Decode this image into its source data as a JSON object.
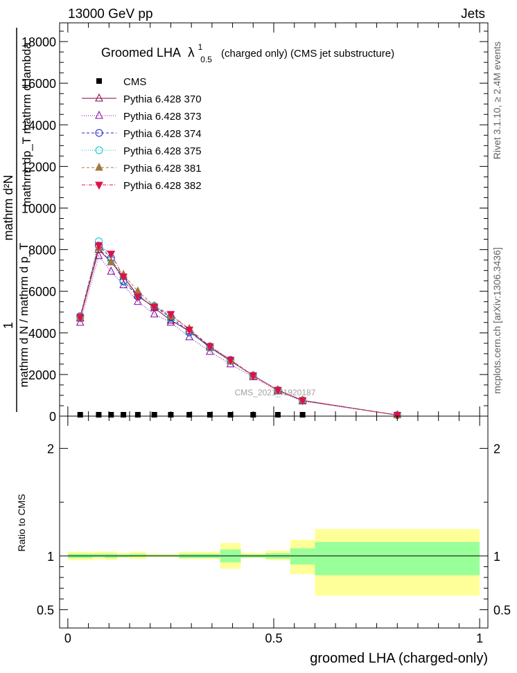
{
  "header": {
    "left": "13000 GeV pp",
    "right": "Jets"
  },
  "side_labels": {
    "rivet": "Rivet 3.1.10, ≥ 2.4M events",
    "mcplots": "mcplots.cern.ch [arXiv:1306.3436]"
  },
  "watermark": "CMS_2021_I1920187",
  "title": {
    "main": "Groomed LHA",
    "symbol": "λ",
    "sup": "1",
    "sub": "0.5",
    "detail": "(charged only) (CMS jet substructure)"
  },
  "y_label_main": {
    "inner": "mathrm d²N / mathrm dp_T mathrm d lambda",
    "prefix": "1",
    "outer": "mathrm d N / mathrm d p_T",
    "top": "mathrm d²N",
    "mid": "mathrm dp_T mathrm d lambda"
  },
  "x_label": "groomed LHA (charged-only)",
  "ratio_ylabel": "Ratio to CMS",
  "colors": {
    "cms": "#000000",
    "p370": "#800040",
    "p373": "#8000a0",
    "p374": "#2020c0",
    "p375": "#00c8c8",
    "p381": "#a07840",
    "p382": "#e0104a",
    "band_outer": "#ffff99",
    "band_inner": "#99ff99"
  },
  "chart_data": [
    {
      "type": "line",
      "panel": "main",
      "x_ticks": [
        0,
        0.5,
        1
      ],
      "y_ticks": [
        0,
        2000,
        4000,
        6000,
        8000,
        10000,
        12000,
        14000,
        16000,
        18000
      ],
      "y_tick_labels": [
        "0",
        "2000",
        "4000",
        "6000",
        "8000",
        "10000",
        "12000",
        "14000",
        "16000",
        "18000"
      ],
      "xlim": [
        -0.02,
        1.02
      ],
      "ylim": [
        0,
        18900
      ],
      "legend_position": "top-left",
      "series": [
        {
          "name": "CMS",
          "key": "cms",
          "marker": "square",
          "x": [
            0.03,
            0.075,
            0.105,
            0.135,
            0.17,
            0.21,
            0.25,
            0.295,
            0.345,
            0.395,
            0.45,
            0.51,
            0.57,
            0.8
          ],
          "y": [
            0,
            0,
            0,
            0,
            0,
            0,
            0,
            0,
            0,
            0,
            0,
            0,
            0,
            null
          ]
        },
        {
          "name": "Pythia 6.428 370",
          "key": "p370",
          "marker": "triangle-open",
          "dash": "",
          "x": [
            0.03,
            0.075,
            0.105,
            0.135,
            0.17,
            0.21,
            0.25,
            0.295,
            0.345,
            0.395,
            0.45,
            0.51,
            0.57,
            0.8
          ],
          "y": [
            4700,
            8000,
            7400,
            6700,
            5800,
            5200,
            4600,
            4100,
            3300,
            2650,
            1950,
            1250,
            750,
            50
          ]
        },
        {
          "name": "Pythia 6.428 373",
          "key": "p373",
          "marker": "triangle-open",
          "dash": "1 2",
          "x": [
            0.03,
            0.075,
            0.105,
            0.135,
            0.17,
            0.21,
            0.25,
            0.295,
            0.345,
            0.395,
            0.45,
            0.51,
            0.57,
            0.8
          ],
          "y": [
            4500,
            7700,
            6950,
            6300,
            5500,
            4900,
            4500,
            3800,
            3100,
            2500,
            1880,
            1200,
            720,
            50
          ]
        },
        {
          "name": "Pythia 6.428 374",
          "key": "p374",
          "marker": "circle-open",
          "dash": "4 3",
          "x": [
            0.03,
            0.075,
            0.105,
            0.135,
            0.17,
            0.21,
            0.25,
            0.295,
            0.345,
            0.395,
            0.45,
            0.51,
            0.57,
            0.8
          ],
          "y": [
            4800,
            8200,
            7600,
            6500,
            5750,
            5250,
            4750,
            4050,
            3350,
            2700,
            1950,
            1250,
            750,
            50
          ]
        },
        {
          "name": "Pythia 6.428 375",
          "key": "p375",
          "marker": "circle-open",
          "dash": "1 2",
          "x": [
            0.03,
            0.075,
            0.105,
            0.135,
            0.17,
            0.21,
            0.25,
            0.295,
            0.345,
            0.395,
            0.45,
            0.51,
            0.57,
            0.8
          ],
          "y": [
            4750,
            8400,
            7500,
            6450,
            5850,
            5300,
            4700,
            4000,
            3300,
            2650,
            1960,
            1250,
            760,
            50
          ]
        },
        {
          "name": "Pythia 6.428 381",
          "key": "p381",
          "marker": "triangle-filled",
          "dash": "4 3",
          "x": [
            0.03,
            0.075,
            0.105,
            0.135,
            0.17,
            0.21,
            0.25,
            0.295,
            0.345,
            0.395,
            0.45,
            0.51,
            0.57,
            0.8
          ],
          "y": [
            4750,
            8100,
            7400,
            6800,
            6000,
            5300,
            4800,
            4200,
            3350,
            2650,
            1950,
            1260,
            760,
            50
          ]
        },
        {
          "name": "Pythia 6.428 382",
          "key": "p382",
          "marker": "triangle-down-filled",
          "dash": "5 2 1 2",
          "x": [
            0.03,
            0.075,
            0.105,
            0.135,
            0.17,
            0.21,
            0.25,
            0.295,
            0.345,
            0.395,
            0.45,
            0.51,
            0.57,
            0.8
          ],
          "y": [
            4750,
            8200,
            7800,
            6700,
            5750,
            5250,
            4900,
            4150,
            3350,
            2700,
            1950,
            1250,
            760,
            50
          ]
        }
      ]
    },
    {
      "type": "area",
      "panel": "ratio",
      "ylabel": "Ratio to CMS",
      "xlim": [
        -0.02,
        1.02
      ],
      "ylim": [
        0.33,
        2.3
      ],
      "y_ticks": [
        0.5,
        1,
        2
      ],
      "y_tick_labels": [
        "0.5",
        "1",
        "2"
      ],
      "x_ticks": [
        0,
        0.5,
        1
      ],
      "x_tick_labels": [
        "0",
        "0.5",
        "1"
      ],
      "reference_line": 1,
      "bin_edges": [
        0,
        0.06,
        0.09,
        0.12,
        0.15,
        0.19,
        0.23,
        0.27,
        0.32,
        0.37,
        0.42,
        0.48,
        0.54,
        0.6,
        1.0
      ],
      "outer_band_low": [
        0.96,
        0.97,
        0.96,
        0.98,
        0.97,
        0.99,
        0.99,
        0.97,
        0.97,
        0.88,
        0.98,
        0.96,
        0.83,
        0.63
      ],
      "outer_band_high": [
        1.04,
        1.04,
        1.04,
        1.03,
        1.04,
        1.02,
        1.02,
        1.04,
        1.04,
        1.12,
        1.03,
        1.05,
        1.15,
        1.25
      ],
      "inner_band_low": [
        0.98,
        0.99,
        0.98,
        0.99,
        0.99,
        0.995,
        0.995,
        0.98,
        0.98,
        0.94,
        0.985,
        0.975,
        0.92,
        0.82
      ],
      "inner_band_high": [
        1.02,
        1.02,
        1.02,
        1.015,
        1.02,
        1.01,
        1.01,
        1.02,
        1.02,
        1.06,
        1.015,
        1.025,
        1.07,
        1.13
      ]
    }
  ]
}
